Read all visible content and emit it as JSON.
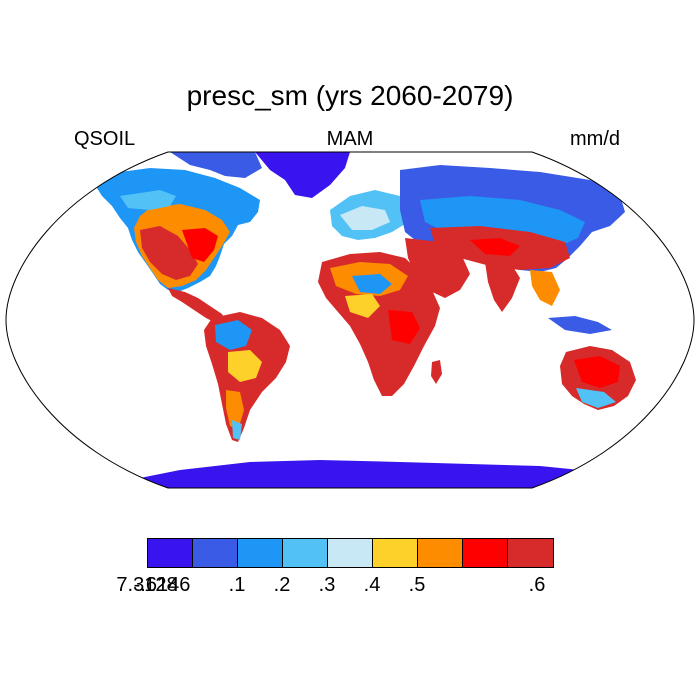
{
  "title": "presc_sm (yrs 2060-2079)",
  "left_label": "QSOIL",
  "center_label": "MAM",
  "right_label": "mm/d",
  "colorbar": {
    "colors": [
      "#3a14ee",
      "#3a5be6",
      "#1e96f6",
      "#52c2f6",
      "#c8e8f6",
      "#fed12a",
      "#fe8c00",
      "#ff0000",
      "#d72a2a"
    ],
    "tick_labels": [
      "-.6146",
      ".1",
      ".2",
      ".3",
      ".4",
      ".5",
      ".6",
      "7.3128"
    ]
  },
  "map": {
    "projection": "Robinson",
    "ocean_color": "#ffffff",
    "coastline_color": "#000000"
  }
}
